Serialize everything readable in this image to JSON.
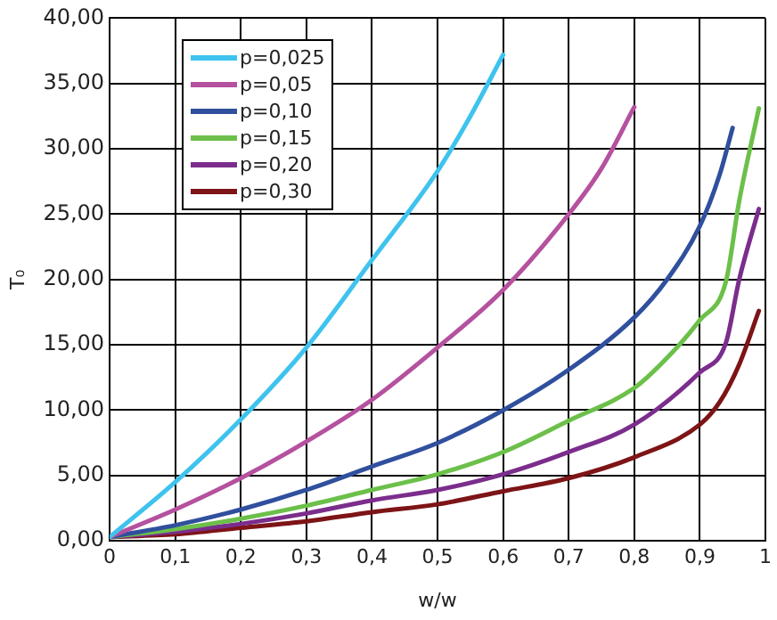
{
  "chart_data": {
    "type": "line",
    "xlabel": "w/w",
    "ylabel": "T₀",
    "xlim": [
      0,
      1
    ],
    "xticks": [
      0,
      {
        "value": 0.1,
        "label": "0,1"
      },
      {
        "value": 0.2,
        "label": "0,2"
      },
      {
        "value": 0.3,
        "label": "0,3"
      },
      {
        "value": 0.4,
        "label": "0,4"
      },
      {
        "value": 0.5,
        "label": "0,5"
      },
      {
        "value": 0.6,
        "label": "0,6"
      },
      {
        "value": 0.7,
        "label": "0,7"
      },
      {
        "value": 0.8,
        "label": "0,8"
      },
      {
        "value": 0.9,
        "label": "0,9"
      },
      1
    ],
    "ylim": [
      0,
      40
    ],
    "yticks": [
      {
        "value": 0,
        "label": "0,00"
      },
      {
        "value": 5,
        "label": "5,00"
      },
      {
        "value": 10,
        "label": "10,00"
      },
      {
        "value": 15,
        "label": "15,00"
      },
      {
        "value": 20,
        "label": "20,00"
      },
      {
        "value": 25,
        "label": "25,00"
      },
      {
        "value": 30,
        "label": "30,00"
      },
      {
        "value": 35,
        "label": "35,00"
      },
      {
        "value": 40,
        "label": "40,00"
      }
    ],
    "grid": true,
    "legend": "top left",
    "marker": "none",
    "line_style": "solid",
    "series": [
      {
        "name": "p=0,025",
        "color": "#3ec3ee",
        "x": [
          0,
          0.1,
          0.2,
          0.3,
          0.4,
          0.5,
          0.55,
          0.6
        ],
        "values": [
          0.3,
          4.5,
          9.3,
          14.8,
          21.5,
          28.3,
          32.5,
          37.2
        ]
      },
      {
        "name": "p=0,05",
        "color": "#b5519e",
        "x": [
          0,
          0.1,
          0.2,
          0.3,
          0.4,
          0.5,
          0.6,
          0.7,
          0.75,
          0.8
        ],
        "values": [
          0.3,
          2.4,
          4.8,
          7.6,
          10.8,
          14.8,
          19.2,
          25.0,
          28.5,
          33.2
        ]
      },
      {
        "name": "p=0,10",
        "color": "#30509e",
        "x": [
          0,
          0.1,
          0.2,
          0.3,
          0.4,
          0.5,
          0.6,
          0.7,
          0.8,
          0.85,
          0.9,
          0.93,
          0.95
        ],
        "values": [
          0.3,
          1.2,
          2.4,
          3.9,
          5.7,
          7.5,
          10.0,
          13.1,
          17.1,
          20.0,
          24.1,
          28.0,
          31.6
        ]
      },
      {
        "name": "p=0,15",
        "color": "#6cc04a",
        "x": [
          0,
          0.1,
          0.2,
          0.3,
          0.4,
          0.5,
          0.6,
          0.7,
          0.8,
          0.85,
          0.9,
          0.94,
          0.96,
          0.99
        ],
        "values": [
          0.3,
          0.9,
          1.7,
          2.7,
          3.9,
          5.1,
          6.8,
          9.2,
          11.7,
          14.0,
          16.9,
          19.9,
          26.0,
          33.1
        ]
      },
      {
        "name": "p=0,20",
        "color": "#7b2d8c",
        "x": [
          0,
          0.1,
          0.2,
          0.3,
          0.4,
          0.5,
          0.6,
          0.7,
          0.8,
          0.9,
          0.94,
          0.96,
          0.99
        ],
        "values": [
          0.3,
          0.7,
          1.3,
          2.1,
          3.1,
          3.9,
          5.1,
          6.8,
          8.9,
          12.9,
          15.2,
          20.0,
          25.4
        ]
      },
      {
        "name": "p=0,30",
        "color": "#7d1416",
        "x": [
          0,
          0.1,
          0.2,
          0.3,
          0.4,
          0.5,
          0.6,
          0.7,
          0.8,
          0.9,
          0.93,
          0.96,
          0.99
        ],
        "values": [
          0.3,
          0.5,
          1.0,
          1.5,
          2.2,
          2.8,
          3.8,
          4.8,
          6.4,
          8.9,
          10.6,
          13.5,
          17.6
        ]
      }
    ]
  }
}
